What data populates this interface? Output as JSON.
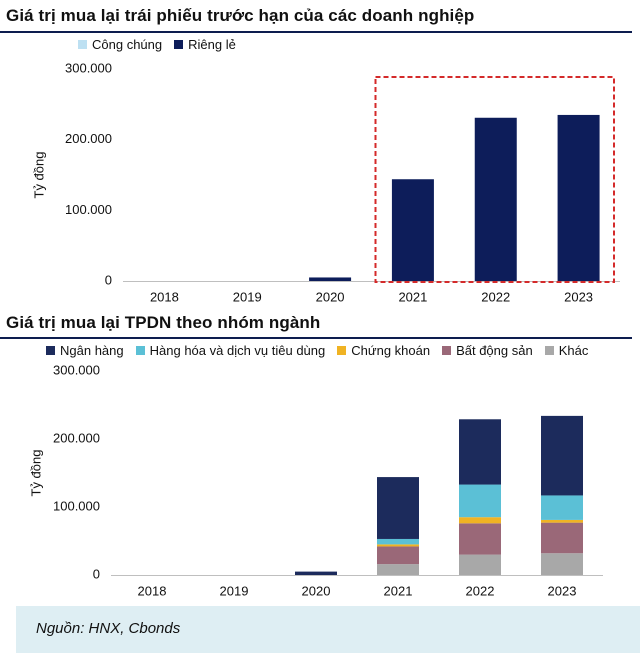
{
  "charts": [
    {
      "title": "Giá trị mua lại trái phiếu trước hạn của các doanh nghiệp",
      "ylabel": "Tỷ đồng",
      "legend": [
        {
          "label": "Công chúng",
          "color": "#bde0f2"
        },
        {
          "label": "Riêng lẻ",
          "color": "#0d1d5a"
        }
      ]
    },
    {
      "title": "Giá trị mua lại TPDN theo nhóm ngành",
      "ylabel": "Tỷ đồng",
      "legend": [
        {
          "label": "Ngân hàng",
          "color": "#1c2b5c"
        },
        {
          "label": "Hàng hóa và dịch vụ tiêu dùng",
          "color": "#5bc0d6"
        },
        {
          "label": "Chứng khoán",
          "color": "#f0b323"
        },
        {
          "label": "Bất động sản",
          "color": "#9a6878"
        },
        {
          "label": "Khác",
          "color": "#a8a8a8"
        }
      ]
    }
  ],
  "source": "Nguồn: HNX, Cbonds",
  "chart_data": [
    {
      "type": "bar",
      "stacked": true,
      "title": "Giá trị mua lại trái phiếu trước hạn của các doanh nghiệp",
      "ylabel": "Tỷ đồng",
      "categories": [
        "2018",
        "2019",
        "2020",
        "2021",
        "2022",
        "2023"
      ],
      "ylim": [
        0,
        300000
      ],
      "yticks": [
        0,
        100000,
        200000,
        300000
      ],
      "ytick_labels": [
        "0",
        "100.000",
        "200.000",
        "300.000"
      ],
      "series": [
        {
          "name": "Công chúng",
          "color": "#bde0f2",
          "values": [
            0,
            0,
            0,
            0,
            0,
            0
          ]
        },
        {
          "name": "Riêng lẻ",
          "color": "#0d1d5a",
          "values": [
            0,
            0,
            5000,
            144000,
            231000,
            235000
          ]
        }
      ],
      "highlight": {
        "from": "2021",
        "to": "2023",
        "style": "dashed",
        "color": "#d42a2a"
      },
      "grid": false,
      "legend_position": "top-left"
    },
    {
      "type": "bar",
      "stacked": true,
      "title": "Giá trị mua lại TPDN theo nhóm ngành",
      "ylabel": "Tỷ đồng",
      "categories": [
        "2018",
        "2019",
        "2020",
        "2021",
        "2022",
        "2023"
      ],
      "ylim": [
        0,
        300000
      ],
      "yticks": [
        0,
        100000,
        200000,
        300000
      ],
      "ytick_labels": [
        "0",
        "100.000",
        "200.000",
        "300.000"
      ],
      "series": [
        {
          "name": "Khác",
          "color": "#a8a8a8",
          "values": [
            0,
            0,
            0,
            16000,
            30000,
            32000
          ]
        },
        {
          "name": "Bất động sản",
          "color": "#9a6878",
          "values": [
            0,
            0,
            0,
            26000,
            46000,
            45000
          ]
        },
        {
          "name": "Chứng khoán",
          "color": "#f0b323",
          "values": [
            0,
            0,
            0,
            3000,
            9000,
            4000
          ]
        },
        {
          "name": "Hàng hóa và dịch vụ tiêu dùng",
          "color": "#5bc0d6",
          "values": [
            0,
            0,
            0,
            8000,
            48000,
            36000
          ]
        },
        {
          "name": "Ngân hàng",
          "color": "#1c2b5c",
          "values": [
            0,
            0,
            5000,
            91000,
            96000,
            117000
          ]
        }
      ],
      "grid": false,
      "legend_position": "top"
    }
  ]
}
